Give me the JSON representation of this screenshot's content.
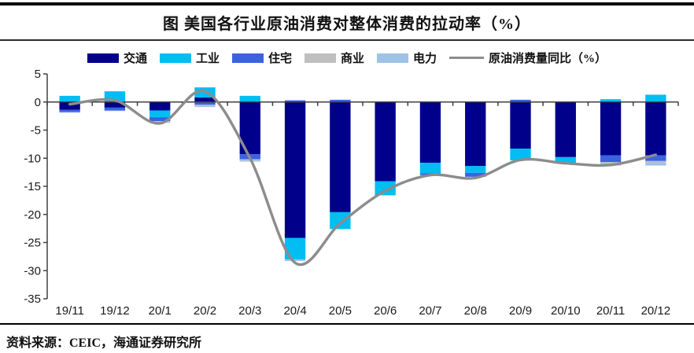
{
  "header": {
    "title": "图 美国各行业原油消费对整体消费的拉动率（%）"
  },
  "footer": {
    "source": "资料来源：CEIC，海通证券研究所"
  },
  "chart_data": {
    "type": "bar",
    "stacked": true,
    "title": "图 美国各行业原油消费对整体消费的拉动率（%）",
    "xlabel": "",
    "ylabel": "",
    "ylim": [
      -35,
      5
    ],
    "yticks": [
      5,
      0,
      -5,
      -10,
      -15,
      -20,
      -25,
      -30,
      -35
    ],
    "grid": false,
    "legend_position": "top",
    "categories": [
      "19/11",
      "19/12",
      "20/1",
      "20/2",
      "20/3",
      "20/4",
      "20/5",
      "20/6",
      "20/7",
      "20/8",
      "20/9",
      "20/10",
      "20/11",
      "20/12"
    ],
    "series": [
      {
        "name": "交通",
        "color": "#00008B",
        "values": [
          -1.4,
          -1.0,
          -1.5,
          0.8,
          -9.3,
          -24.2,
          -19.6,
          -14.1,
          -10.8,
          -11.4,
          -8.3,
          -9.8,
          -9.5,
          -9.5
        ]
      },
      {
        "name": "工业",
        "color": "#00BDF2",
        "values": [
          1.1,
          1.9,
          -1.2,
          1.8,
          1.1,
          -3.8,
          -3.0,
          -2.5,
          -1.9,
          -1.2,
          -2.1,
          -1.0,
          0.5,
          1.3
        ]
      },
      {
        "name": "住宅",
        "color": "#3B63E0",
        "values": [
          -0.4,
          -0.5,
          -0.7,
          -0.5,
          -0.9,
          0.3,
          0.4,
          0.0,
          -0.3,
          -0.7,
          0.4,
          0.0,
          -1.2,
          -1.0
        ]
      },
      {
        "name": "商业",
        "color": "#BFBFBF",
        "values": [
          0.0,
          0.0,
          -0.1,
          -0.2,
          -0.2,
          -0.1,
          0.0,
          0.0,
          -0.1,
          0.0,
          0.0,
          0.0,
          -0.2,
          -0.3
        ]
      },
      {
        "name": "电力",
        "color": "#9DC3E6",
        "values": [
          -0.1,
          -0.1,
          -0.2,
          -0.2,
          -0.2,
          -0.2,
          0.0,
          0.0,
          0.0,
          0.0,
          0.0,
          0.0,
          -0.4,
          -0.5
        ]
      }
    ],
    "line_series": {
      "name": "原油消费量同比（%）",
      "color": "#8C8C8C",
      "values": [
        -0.4,
        0.3,
        -3.8,
        1.9,
        -10.0,
        -28.6,
        -21.6,
        -15.8,
        -13.0,
        -13.5,
        -10.3,
        -10.9,
        -11.2,
        -9.4
      ]
    }
  }
}
